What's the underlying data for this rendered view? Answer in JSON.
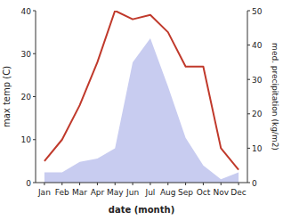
{
  "chart_data": {
    "type": "line",
    "xlabel": "date (month)",
    "ylabel": "max temp (C)",
    "y2label": "med. precipitation (kg/m2)",
    "categories": [
      "Jan",
      "Feb",
      "Mar",
      "Apr",
      "May",
      "Jun",
      "Jul",
      "Aug",
      "Sep",
      "Oct",
      "Nov",
      "Dec"
    ],
    "series": [
      {
        "type": "area",
        "axis": "y2",
        "color": "#c8ccf0",
        "values": [
          3,
          3,
          6,
          7,
          10,
          35,
          42,
          28,
          13,
          5,
          1,
          3
        ]
      },
      {
        "type": "line",
        "color": "#c0392b",
        "values": [
          5,
          10,
          18,
          28,
          40,
          38,
          39,
          35,
          27,
          27,
          8,
          3
        ]
      }
    ],
    "ylim": [
      0,
      40
    ],
    "yticks": [
      0,
      10,
      20,
      30,
      40
    ],
    "y2lim": [
      0,
      50
    ],
    "y2ticks": [
      0,
      10,
      20,
      30,
      40,
      50
    ],
    "grid": false
  }
}
